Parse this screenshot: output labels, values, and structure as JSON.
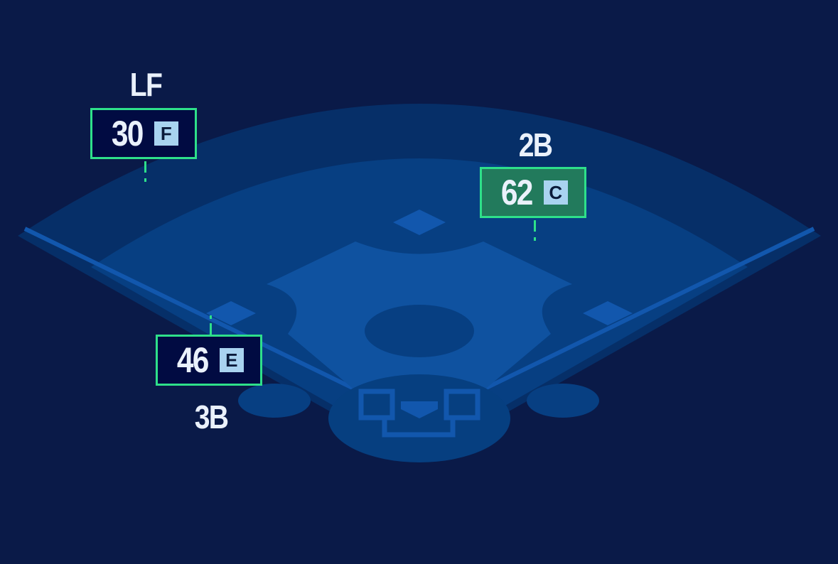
{
  "colors": {
    "background": "#0a1a48",
    "outfield": "#062f68",
    "grass": "#073f82",
    "infield": "#0f52a0",
    "border": "#2ee08a",
    "highlight": "#227a5c",
    "grade_badge": "#a9d3f0"
  },
  "positions": [
    {
      "label": "LF",
      "value": "30",
      "grade": "F",
      "highlighted": false
    },
    {
      "label": "2B",
      "value": "62",
      "grade": "C",
      "highlighted": true
    },
    {
      "label": "3B",
      "value": "46",
      "grade": "E",
      "highlighted": false
    }
  ]
}
